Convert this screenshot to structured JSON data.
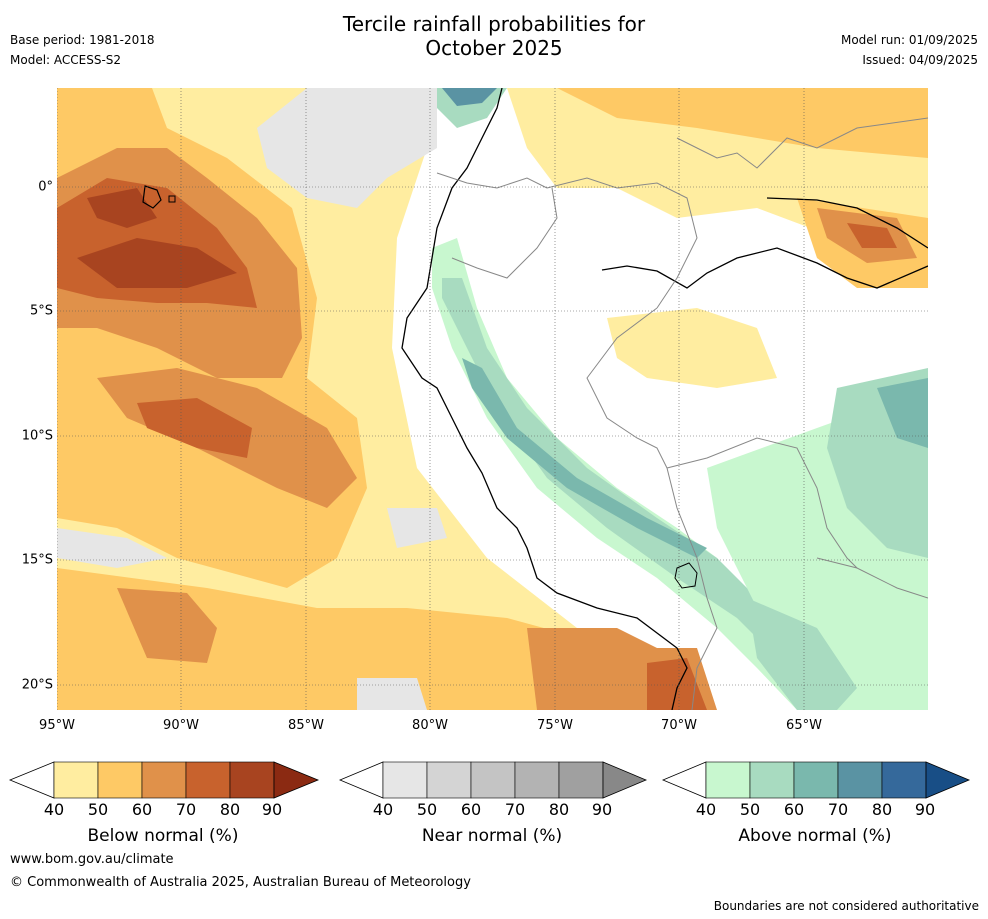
{
  "title": {
    "line1": "Tercile rainfall probabilities for",
    "line2": "October 2025"
  },
  "meta": {
    "base_period": "Base period: 1981-2018",
    "model": "Model: ACCESS-S2",
    "model_run": "Model run: 01/09/2025",
    "issued": "Issued: 04/09/2025"
  },
  "axes": {
    "lat_labels": [
      "0°",
      "5°S",
      "10°S",
      "15°S",
      "20°S"
    ],
    "lon_labels": [
      "95°W",
      "90°W",
      "85°W",
      "80°W",
      "75°W",
      "70°W",
      "65°W"
    ]
  },
  "colorbars": [
    {
      "label": "Below normal (%)",
      "ticks": [
        "40",
        "50",
        "60",
        "70",
        "80",
        "90"
      ],
      "colors": [
        "#ffeda0",
        "#fec965",
        "#e0914a",
        "#c8622d",
        "#a84420",
        "#8b2a12"
      ]
    },
    {
      "label": "Near normal (%)",
      "ticks": [
        "40",
        "50",
        "60",
        "70",
        "80",
        "90"
      ],
      "colors": [
        "#e6e6e6",
        "#d4d4d4",
        "#c4c4c4",
        "#b3b3b3",
        "#a0a0a0",
        "#888888"
      ]
    },
    {
      "label": "Above normal (%)",
      "ticks": [
        "40",
        "50",
        "60",
        "70",
        "80",
        "90"
      ],
      "colors": [
        "#c8f7cf",
        "#a8dbc0",
        "#7ab8ad",
        "#5a93a3",
        "#35699b",
        "#184e86"
      ]
    }
  ],
  "footer": {
    "url": "www.bom.gov.au/climate",
    "copyright": "© Commonwealth of Australia 2025, Australian Bureau of Meteorology",
    "disclaimer": "Boundaries are not considered authoritative"
  }
}
